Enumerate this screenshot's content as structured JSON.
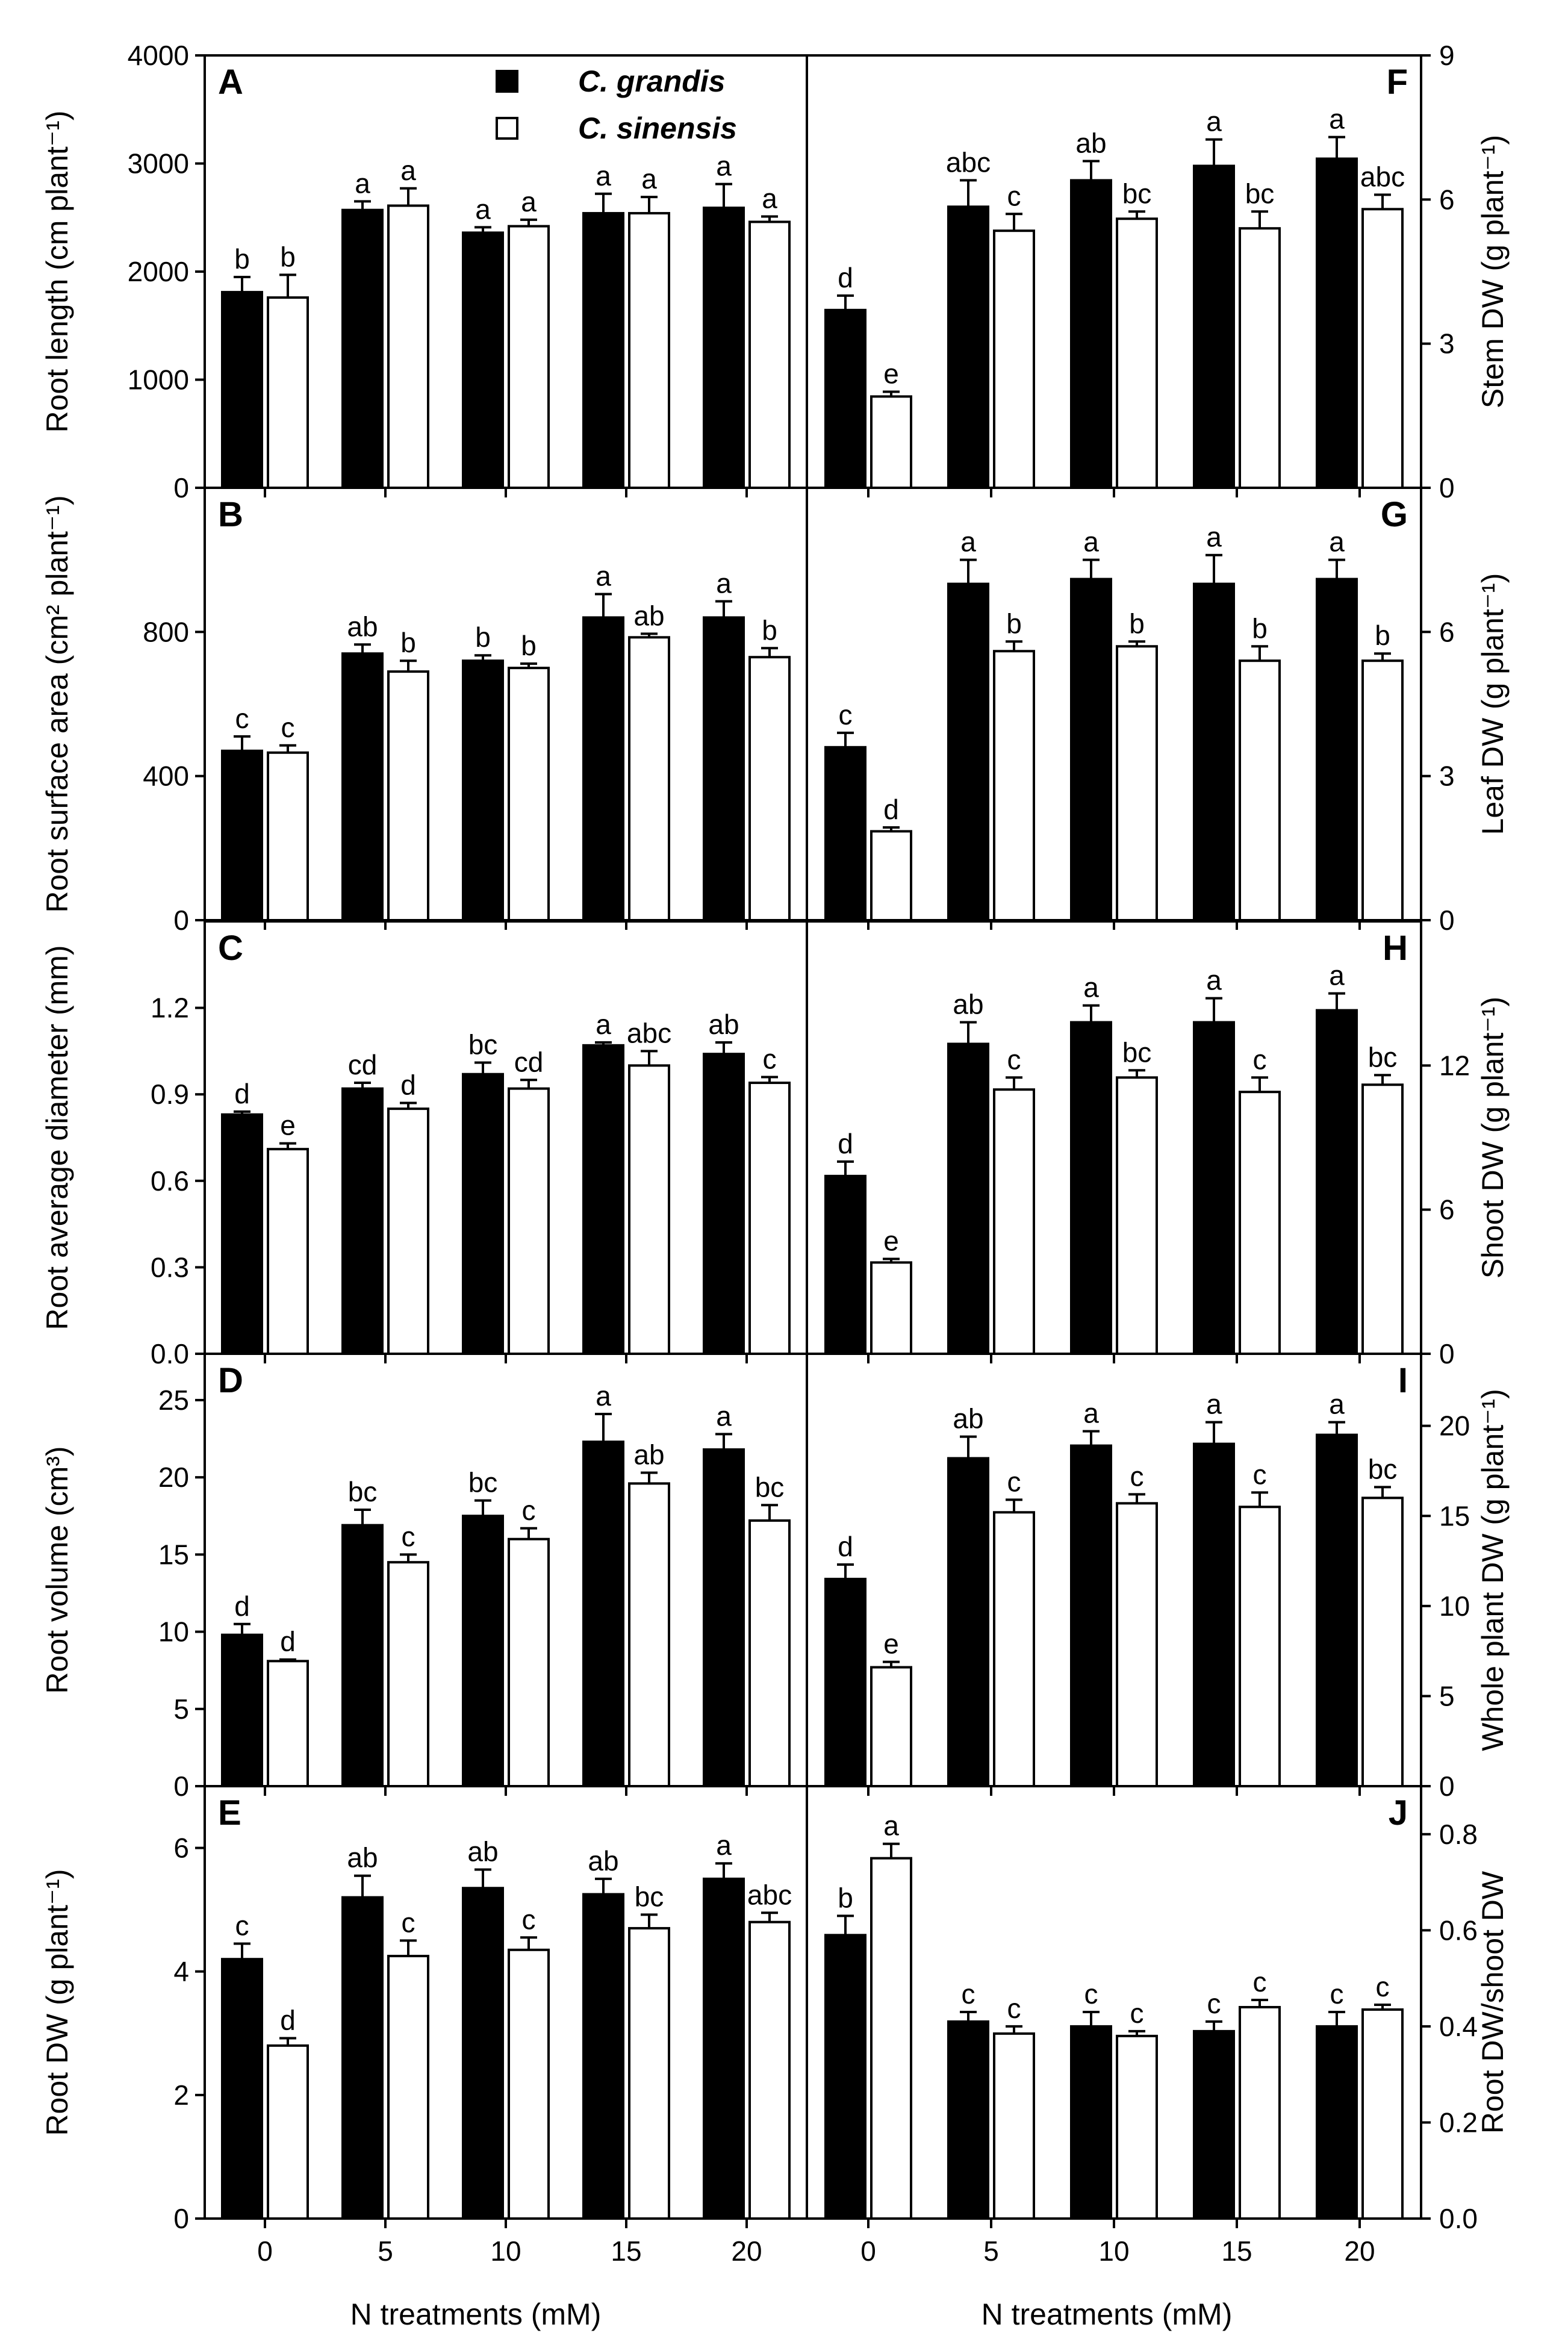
{
  "legend": {
    "items": [
      {
        "label": "C. grandis",
        "fill": "#000000"
      },
      {
        "label": "C. sinensis",
        "fill": "#ffffff"
      }
    ]
  },
  "categories": [
    "0",
    "5",
    "10",
    "15",
    "20"
  ],
  "xlabel": "N treatments (mM)",
  "colors": {
    "grandis": "#000000",
    "sinensis": "#ffffff",
    "stroke": "#000000"
  },
  "chart_data": [
    {
      "type": "bar",
      "panel": "A",
      "ylabel": "Root length (cm plant⁻¹)",
      "ylim": [
        0,
        4000
      ],
      "yticks": [
        "0",
        "1000",
        "2000",
        "3000",
        "4000"
      ],
      "axis": "left",
      "categories": [
        "0",
        "5",
        "10",
        "15",
        "20"
      ],
      "series": [
        {
          "name": "C. grandis",
          "values": [
            1810,
            2570,
            2360,
            2540,
            2590
          ],
          "errors": [
            140,
            80,
            50,
            180,
            220
          ],
          "labels": [
            "b",
            "a",
            "a",
            "a",
            "a"
          ]
        },
        {
          "name": "C. sinensis",
          "values": [
            1760,
            2610,
            2420,
            2540,
            2460
          ],
          "errors": [
            210,
            160,
            60,
            150,
            50
          ],
          "labels": [
            "b",
            "a",
            "a",
            "a",
            "a"
          ]
        }
      ]
    },
    {
      "type": "bar",
      "panel": "B",
      "ylabel": "Root surface area (cm² plant⁻¹)",
      "ylim": [
        0,
        1200
      ],
      "yticks": [
        "0",
        "400",
        "800"
      ],
      "axis": "left",
      "categories": [
        "0",
        "5",
        "10",
        "15",
        "20"
      ],
      "series": [
        {
          "name": "C. grandis",
          "values": [
            470,
            740,
            720,
            840,
            840
          ],
          "errors": [
            40,
            25,
            15,
            65,
            45
          ],
          "labels": [
            "c",
            "ab",
            "b",
            "a",
            "a"
          ]
        },
        {
          "name": "C. sinensis",
          "values": [
            465,
            690,
            700,
            785,
            730
          ],
          "errors": [
            20,
            30,
            12,
            10,
            25
          ],
          "labels": [
            "c",
            "b",
            "b",
            "ab",
            "b"
          ]
        }
      ]
    },
    {
      "type": "bar",
      "panel": "C",
      "ylabel": "Root average diameter (mm)",
      "ylim": [
        0,
        1.5
      ],
      "yticks": [
        "0.0",
        "0.3",
        "0.6",
        "0.9",
        "1.2"
      ],
      "axis": "left",
      "categories": [
        "0",
        "5",
        "10",
        "15",
        "20"
      ],
      "series": [
        {
          "name": "C. grandis",
          "values": [
            0.83,
            0.92,
            0.97,
            1.07,
            1.04
          ],
          "errors": [
            0.01,
            0.02,
            0.04,
            0.01,
            0.04
          ],
          "labels": [
            "d",
            "cd",
            "bc",
            "a",
            "ab"
          ]
        },
        {
          "name": "C. sinensis",
          "values": [
            0.71,
            0.85,
            0.92,
            1.0,
            0.94
          ],
          "errors": [
            0.02,
            0.02,
            0.03,
            0.05,
            0.02
          ],
          "labels": [
            "e",
            "d",
            "cd",
            "abc",
            "c"
          ]
        }
      ]
    },
    {
      "type": "bar",
      "panel": "D",
      "ylabel": "Root volume (cm³)",
      "ylim": [
        0,
        28
      ],
      "yticks": [
        "0",
        "5",
        "10",
        "15",
        "20",
        "25"
      ],
      "axis": "left",
      "categories": [
        "0",
        "5",
        "10",
        "15",
        "20"
      ],
      "series": [
        {
          "name": "C. grandis",
          "values": [
            9.8,
            16.9,
            17.5,
            22.3,
            21.8
          ],
          "errors": [
            0.7,
            1.0,
            1.0,
            1.8,
            1.0
          ],
          "labels": [
            "d",
            "bc",
            "bc",
            "a",
            "a"
          ]
        },
        {
          "name": "C. sinensis",
          "values": [
            8.1,
            14.5,
            16.0,
            19.6,
            17.2
          ],
          "errors": [
            0.1,
            0.5,
            0.7,
            0.7,
            1.0
          ],
          "labels": [
            "d",
            "c",
            "c",
            "ab",
            "bc"
          ]
        }
      ]
    },
    {
      "type": "bar",
      "panel": "E",
      "ylabel": "Root DW (g plant⁻¹)",
      "ylim": [
        0,
        7
      ],
      "yticks": [
        "0",
        "2",
        "4",
        "6"
      ],
      "axis": "left",
      "categories": [
        "0",
        "5",
        "10",
        "15",
        "20"
      ],
      "series": [
        {
          "name": "C. grandis",
          "values": [
            4.2,
            5.2,
            5.35,
            5.25,
            5.5
          ],
          "errors": [
            0.25,
            0.35,
            0.3,
            0.25,
            0.25
          ],
          "labels": [
            "c",
            "ab",
            "ab",
            "ab",
            "a"
          ]
        },
        {
          "name": "C. sinensis",
          "values": [
            2.8,
            4.25,
            4.35,
            4.7,
            4.8
          ],
          "errors": [
            0.12,
            0.25,
            0.2,
            0.22,
            0.15
          ],
          "labels": [
            "d",
            "c",
            "c",
            "bc",
            "abc"
          ]
        }
      ]
    },
    {
      "type": "bar",
      "panel": "F",
      "ylabel": "Stem DW (g plant⁻¹)",
      "ylim": [
        0,
        9
      ],
      "yticks": [
        "0",
        "3",
        "6",
        "9"
      ],
      "axis": "right",
      "categories": [
        "0",
        "5",
        "10",
        "15",
        "20"
      ],
      "series": [
        {
          "name": "C. grandis",
          "values": [
            3.7,
            5.85,
            6.4,
            6.7,
            6.85
          ],
          "errors": [
            0.3,
            0.55,
            0.4,
            0.55,
            0.45
          ],
          "labels": [
            "d",
            "abc",
            "ab",
            "a",
            "a"
          ]
        },
        {
          "name": "C. sinensis",
          "values": [
            1.9,
            5.35,
            5.6,
            5.4,
            5.8
          ],
          "errors": [
            0.1,
            0.35,
            0.15,
            0.35,
            0.3
          ],
          "labels": [
            "e",
            "c",
            "bc",
            "bc",
            "abc"
          ]
        }
      ]
    },
    {
      "type": "bar",
      "panel": "G",
      "ylabel": "Leaf DW (g plant⁻¹)",
      "ylim": [
        0,
        9
      ],
      "yticks": [
        "0",
        "3",
        "6"
      ],
      "axis": "right",
      "categories": [
        "0",
        "5",
        "10",
        "15",
        "20"
      ],
      "series": [
        {
          "name": "C. grandis",
          "values": [
            3.6,
            7.0,
            7.1,
            7.0,
            7.1
          ],
          "errors": [
            0.3,
            0.5,
            0.4,
            0.6,
            0.4
          ],
          "labels": [
            "c",
            "a",
            "a",
            "a",
            "a"
          ]
        },
        {
          "name": "C. sinensis",
          "values": [
            1.85,
            5.6,
            5.7,
            5.4,
            5.4
          ],
          "errors": [
            0.08,
            0.2,
            0.1,
            0.3,
            0.15
          ],
          "labels": [
            "d",
            "b",
            "b",
            "b",
            "b"
          ]
        }
      ]
    },
    {
      "type": "bar",
      "panel": "H",
      "ylabel": "Shoot DW (g plant⁻¹)",
      "ylim": [
        0,
        18
      ],
      "yticks": [
        "0",
        "6",
        "12"
      ],
      "axis": "right",
      "categories": [
        "0",
        "5",
        "10",
        "15",
        "20"
      ],
      "series": [
        {
          "name": "C. grandis",
          "values": [
            7.4,
            12.9,
            13.8,
            13.8,
            14.3
          ],
          "errors": [
            0.6,
            0.9,
            0.7,
            1.0,
            0.7
          ],
          "labels": [
            "d",
            "ab",
            "a",
            "a",
            "a"
          ]
        },
        {
          "name": "C. sinensis",
          "values": [
            3.8,
            11.0,
            11.5,
            10.9,
            11.2
          ],
          "errors": [
            0.15,
            0.5,
            0.3,
            0.6,
            0.4
          ],
          "labels": [
            "e",
            "c",
            "bc",
            "c",
            "bc"
          ]
        }
      ]
    },
    {
      "type": "bar",
      "panel": "I",
      "ylabel": "Whole plant DW (g plant⁻¹)",
      "ylim": [
        0,
        24
      ],
      "yticks": [
        "0",
        "5",
        "10",
        "15",
        "20"
      ],
      "axis": "right",
      "categories": [
        "0",
        "5",
        "10",
        "15",
        "20"
      ],
      "series": [
        {
          "name": "C. grandis",
          "values": [
            11.5,
            18.2,
            18.9,
            19.0,
            19.5
          ],
          "errors": [
            0.8,
            1.2,
            0.8,
            1.2,
            0.7
          ],
          "labels": [
            "d",
            "ab",
            "a",
            "a",
            "a"
          ]
        },
        {
          "name": "C. sinensis",
          "values": [
            6.6,
            15.2,
            15.7,
            15.5,
            16.0
          ],
          "errors": [
            0.3,
            0.7,
            0.5,
            0.8,
            0.6
          ],
          "labels": [
            "e",
            "c",
            "c",
            "c",
            "bc"
          ]
        }
      ]
    },
    {
      "type": "bar",
      "panel": "J",
      "ylabel": "Root DW/shoot DW",
      "ylim": [
        0,
        0.9
      ],
      "yticks": [
        "0.0",
        "0.2",
        "0.4",
        "0.6",
        "0.8"
      ],
      "axis": "right",
      "categories": [
        "0",
        "5",
        "10",
        "15",
        "20"
      ],
      "series": [
        {
          "name": "C. grandis",
          "values": [
            0.59,
            0.41,
            0.4,
            0.39,
            0.4
          ],
          "errors": [
            0.04,
            0.02,
            0.03,
            0.02,
            0.03
          ],
          "labels": [
            "b",
            "c",
            "c",
            "c",
            "c"
          ]
        },
        {
          "name": "C. sinensis",
          "values": [
            0.75,
            0.385,
            0.38,
            0.44,
            0.435
          ],
          "errors": [
            0.03,
            0.015,
            0.01,
            0.015,
            0.01
          ],
          "labels": [
            "a",
            "c",
            "c",
            "c",
            "c"
          ]
        }
      ]
    }
  ]
}
